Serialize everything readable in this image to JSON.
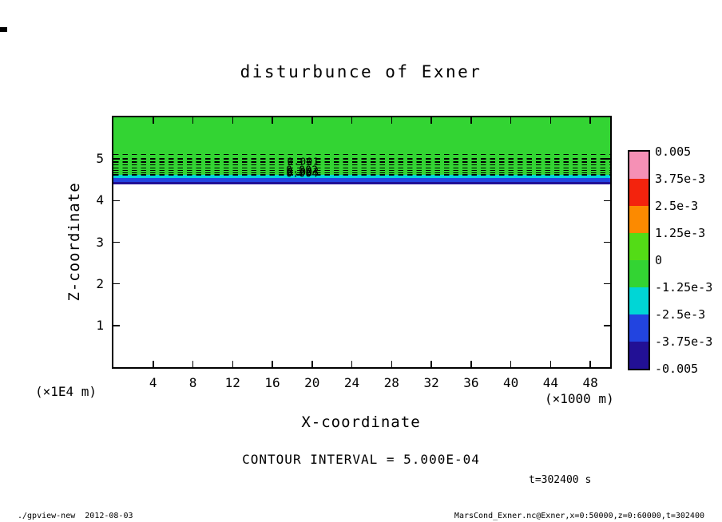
{
  "title": "disturbunce of Exner",
  "axes": {
    "x": {
      "label": "X-coordinate",
      "unit": "(×1000 m)"
    },
    "y": {
      "label": "Z-coordinate",
      "unit": "(×1E4 m)"
    }
  },
  "annotations": {
    "contour_interval": "CONTOUR INTERVAL = 5.000E-04",
    "time": "t=302400 s"
  },
  "footer": {
    "left": "./gpview-new  2012-08-03",
    "right": "MarsCond_Exner.nc@Exner,x=0:50000,z=0:60000,t=302400"
  },
  "colorbar": {
    "labels": [
      "0.005",
      "3.75e-3",
      "2.5e-3",
      "1.25e-3",
      "0",
      "-1.25e-3",
      "-2.5e-3",
      "-3.75e-3",
      "-0.005"
    ],
    "segments": [
      {
        "range": "3.75e-3 to 5e-3",
        "color": "#f590b5"
      },
      {
        "range": "2.5e-3 to 3.75e-3",
        "color": "#f3230d"
      },
      {
        "range": "1.25e-3 to 2.5e-3",
        "color": "#fc8a00"
      },
      {
        "range": "0 to 1.25e-3",
        "color": "#53dc16"
      },
      {
        "range": "-1.25e-3 to 0",
        "color": "#33d433"
      },
      {
        "range": "-2.5e-3 to -1.25e-3",
        "color": "#00d6d6"
      },
      {
        "range": "-3.75e-3 to -2.5e-3",
        "color": "#2244e0"
      },
      {
        "range": "-5e-3 to -3.75e-3",
        "color": "#221095"
      }
    ]
  },
  "chart_data": {
    "type": "heatmap",
    "title": "disturbunce of Exner",
    "xlabel": "X-coordinate",
    "ylabel": "Z-coordinate",
    "x_unit": "×1000 m",
    "y_unit": "×1E4 m",
    "xlim": [
      0,
      50
    ],
    "ylim": [
      0,
      6
    ],
    "x_ticks": [
      4,
      8,
      12,
      16,
      20,
      24,
      28,
      32,
      36,
      40,
      44,
      48
    ],
    "y_ticks": [
      1,
      2,
      3,
      4,
      5
    ],
    "grid": false,
    "legend_position": "right-colorbar",
    "contour_interval": 0.0005,
    "time_seconds": 302400,
    "tone_levels": [
      0.005,
      0.00375,
      0.0025,
      0.00125,
      0,
      -0.00125,
      -0.0025,
      -0.00375,
      -0.005
    ],
    "field_bands": [
      {
        "z_from": 4.62,
        "z_to": 6.0,
        "color": "#33d433",
        "value": "near 0 (-1.25e-3 to 0)"
      },
      {
        "z_from": 4.54,
        "z_to": 4.62,
        "color": "#00d6d6",
        "value": "-2.5e-3 to -1.25e-3"
      },
      {
        "z_from": 4.45,
        "z_to": 4.54,
        "color": "#2244e0",
        "value": "-3.75e-3 to -2.5e-3"
      },
      {
        "z_from": 4.39,
        "z_to": 4.45,
        "color": "#221095",
        "value": "-5e-3 to -3.75e-3"
      },
      {
        "z_from": 0,
        "z_to": 4.39,
        "color": "#ffffff",
        "value": "below tone range (unshaded)"
      }
    ],
    "dashed_contour_z": [
      5.12,
      5.02,
      4.94,
      4.87,
      4.8,
      4.74,
      4.68,
      4.63
    ],
    "contour_labels": [
      {
        "text": "0.001",
        "x": 19.1,
        "z": 4.95
      },
      {
        "text": "0.002",
        "x": 19.0,
        "z": 4.76
      },
      {
        "text": "0.003",
        "x": 19.1,
        "z": 4.7
      },
      {
        "text": "0.004",
        "x": 19.0,
        "z": 4.66
      }
    ]
  }
}
